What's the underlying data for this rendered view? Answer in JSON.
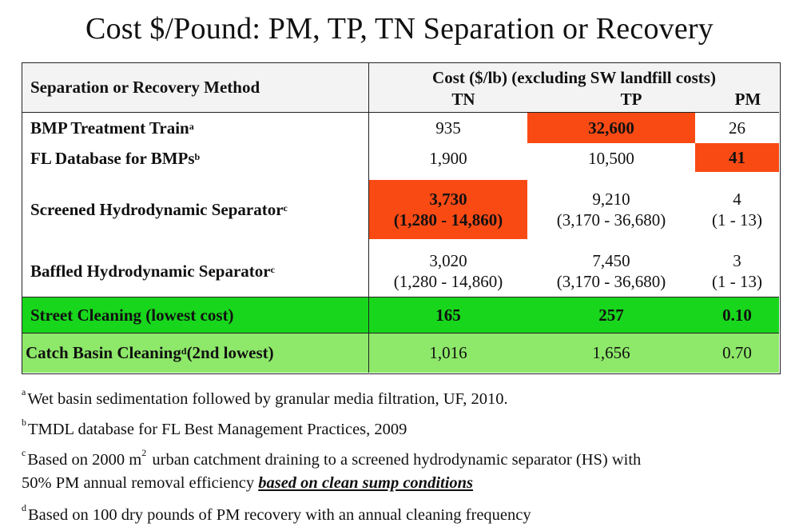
{
  "title": "Cost $/Pound: PM, TP, TN Separation or Recovery",
  "table": {
    "method_header": "Separation or Recovery Method",
    "cost_header": "Cost ($/lb) (excluding SW landfill costs)",
    "columns": [
      "TN",
      "TP",
      "PM"
    ],
    "rows": [
      {
        "label": "BMP Treatment Train",
        "sup": "a",
        "tn": "935",
        "tn2": "",
        "tp": "32,600",
        "tp2": "",
        "pm": "26",
        "pm2": ""
      },
      {
        "label": "FL Database for BMPs",
        "sup": "b",
        "tn": "1,900",
        "tn2": "",
        "tp": "10,500",
        "tp2": "",
        "pm": "41",
        "pm2": ""
      },
      {
        "label": "Screened Hydrodynamic Separator",
        "sup": "c",
        "tn": "3,730",
        "tn2": "(1,280 - 14,860)",
        "tp": "9,210",
        "tp2": "(3,170 - 36,680)",
        "pm": "4",
        "pm2": "(1 - 13)"
      },
      {
        "label": "Baffled Hydrodynamic Separator",
        "sup": "c",
        "tn": "3,020",
        "tn2": "(1,280 - 14,860)",
        "tp": "7,450",
        "tp2": "(3,170 - 36,680)",
        "pm": "3",
        "pm2": "(1 - 13)"
      },
      {
        "label": "Street Cleaning (lowest cost)",
        "sup": "",
        "tn": "165",
        "tn2": "",
        "tp": "257",
        "tp2": "",
        "pm": "0.10",
        "pm2": ""
      },
      {
        "label_a": "Catch Basin Cleaning",
        "sup": "d",
        "label_b": "(2nd lowest)",
        "tn": "1,016",
        "tn2": "",
        "tp": "1,656",
        "tp2": "",
        "pm": "0.70",
        "pm2": ""
      }
    ],
    "colors": {
      "highlight": "#fa4a14",
      "street_green": "#18d61c",
      "catch_green": "#8ee86a"
    }
  },
  "footnotes": {
    "a": {
      "mark": "a",
      "text": "Wet basin sedimentation followed by granular media filtration, UF, 2010."
    },
    "b": {
      "mark": "b",
      "text": "TMDL database for FL Best Management Practices, 2009"
    },
    "c": {
      "mark": "c",
      "text1": "Based on 2000 m",
      "exp": "2",
      "text2": " urban catchment draining to a screened hydrodynamic separator (HS) with",
      "line2": "50% PM annual removal efficiency ",
      "emph": "based on clean sump conditions"
    },
    "d": {
      "mark": "d",
      "text": "Based on 100 dry pounds of PM recovery with an annual cleaning frequency"
    }
  }
}
